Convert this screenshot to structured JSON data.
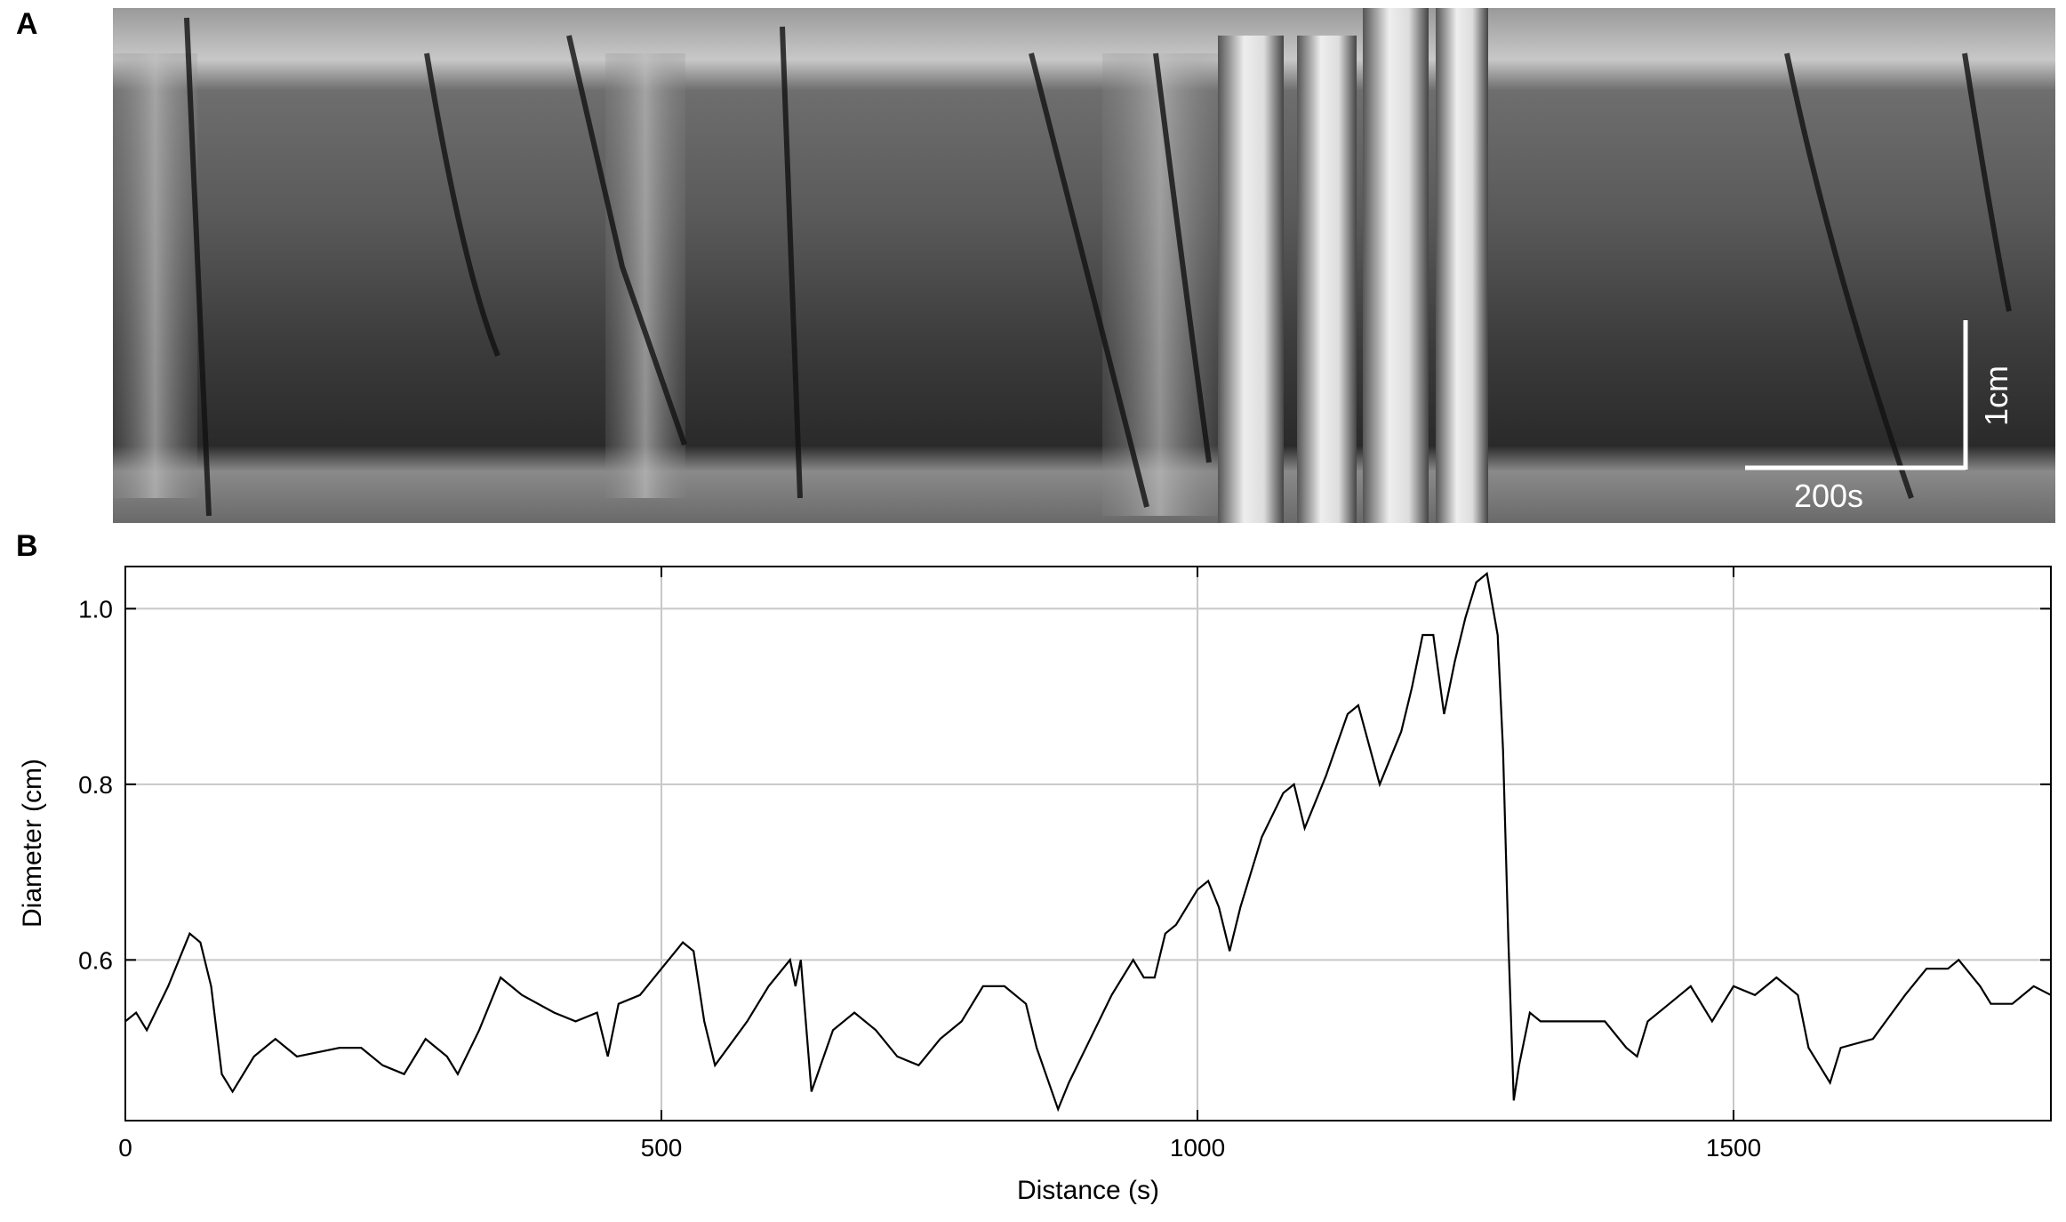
{
  "panel_a": {
    "label": "A",
    "scale_x": "200s",
    "scale_y": "1cm"
  },
  "chart_data": {
    "type": "line",
    "panel_label": "B",
    "x_label": "Distance (s)",
    "y_label": "Diameter (cm)",
    "x": [
      0,
      10,
      20,
      40,
      60,
      70,
      80,
      90,
      100,
      120,
      140,
      160,
      200,
      220,
      240,
      260,
      280,
      300,
      310,
      330,
      350,
      370,
      400,
      420,
      440,
      450,
      460,
      480,
      500,
      520,
      530,
      540,
      550,
      580,
      600,
      620,
      625,
      630,
      640,
      660,
      680,
      700,
      720,
      740,
      760,
      780,
      800,
      820,
      840,
      850,
      870,
      880,
      900,
      920,
      940,
      950,
      960,
      970,
      980,
      1000,
      1010,
      1020,
      1030,
      1040,
      1060,
      1080,
      1090,
      1100,
      1110,
      1120,
      1140,
      1150,
      1170,
      1190,
      1200,
      1210,
      1220,
      1230,
      1240,
      1250,
      1260,
      1270,
      1280,
      1285,
      1290,
      1295,
      1300,
      1310,
      1320,
      1350,
      1380,
      1400,
      1410,
      1420,
      1440,
      1460,
      1480,
      1500,
      1520,
      1540,
      1560,
      1570,
      1590,
      1600,
      1630,
      1660,
      1680,
      1700,
      1710,
      1730,
      1740,
      1760,
      1780,
      1796
    ],
    "values": [
      0.53,
      0.54,
      0.52,
      0.57,
      0.63,
      0.62,
      0.57,
      0.47,
      0.45,
      0.49,
      0.51,
      0.49,
      0.5,
      0.5,
      0.48,
      0.47,
      0.51,
      0.49,
      0.47,
      0.52,
      0.58,
      0.56,
      0.54,
      0.53,
      0.54,
      0.49,
      0.55,
      0.56,
      0.59,
      0.62,
      0.61,
      0.53,
      0.48,
      0.53,
      0.57,
      0.6,
      0.57,
      0.6,
      0.45,
      0.52,
      0.54,
      0.52,
      0.49,
      0.48,
      0.51,
      0.53,
      0.57,
      0.57,
      0.55,
      0.5,
      0.43,
      0.46,
      0.51,
      0.56,
      0.6,
      0.58,
      0.58,
      0.63,
      0.64,
      0.68,
      0.69,
      0.66,
      0.61,
      0.66,
      0.74,
      0.79,
      0.8,
      0.75,
      0.78,
      0.81,
      0.88,
      0.89,
      0.8,
      0.86,
      0.91,
      0.97,
      0.97,
      0.88,
      0.94,
      0.99,
      1.03,
      1.04,
      0.97,
      0.84,
      0.62,
      0.44,
      0.48,
      0.54,
      0.53,
      0.53,
      0.53,
      0.5,
      0.49,
      0.53,
      0.55,
      0.57,
      0.53,
      0.57,
      0.56,
      0.58,
      0.56,
      0.5,
      0.46,
      0.5,
      0.51,
      0.56,
      0.59,
      0.59,
      0.6,
      0.57,
      0.55,
      0.55,
      0.57,
      0.56
    ],
    "color": "#000000",
    "xlim": [
      0,
      1796
    ],
    "xticks": [
      0,
      500,
      1000,
      1500
    ],
    "ylim": [
      0.417,
      1.048
    ],
    "yticks": [
      0.6,
      0.8,
      {
        "value": 1,
        "label": "1.0"
      }
    ],
    "grid": true
  }
}
